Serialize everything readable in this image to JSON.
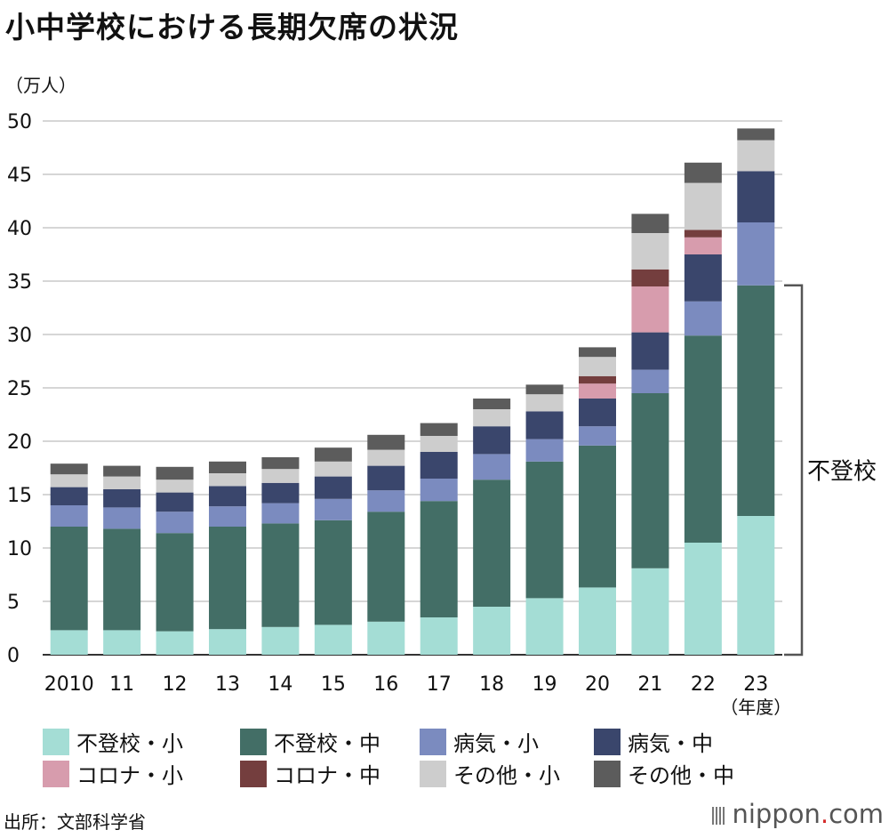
{
  "title": "小中学校における長期欠席の状況",
  "unit_label": "（万人）",
  "source": "出所：文部科学省",
  "logo": {
    "prefix": "nippon",
    "dot": ".",
    "suffix": "com"
  },
  "bracket_label": "不登校",
  "chart_data": {
    "type": "bar",
    "stacked": true,
    "categories": [
      "2010",
      "11",
      "12",
      "13",
      "14",
      "15",
      "16",
      "17",
      "18",
      "19",
      "20",
      "21",
      "22",
      "23"
    ],
    "x_suffix": "（年度）",
    "ylim": [
      0,
      50
    ],
    "yticks": [
      0,
      5,
      10,
      15,
      20,
      25,
      30,
      35,
      40,
      45,
      50
    ],
    "grid": true,
    "legend_position": "bottom",
    "series": [
      {
        "name": "不登校・小",
        "color": "#a4ddd5",
        "values": [
          2.3,
          2.3,
          2.2,
          2.4,
          2.6,
          2.8,
          3.1,
          3.5,
          4.5,
          5.3,
          6.3,
          8.1,
          10.5,
          13.0
        ]
      },
      {
        "name": "不登校・中",
        "color": "#436e66",
        "values": [
          9.7,
          9.5,
          9.2,
          9.6,
          9.7,
          9.8,
          10.3,
          10.9,
          11.9,
          12.8,
          13.3,
          16.4,
          19.4,
          21.6
        ]
      },
      {
        "name": "病気・小",
        "color": "#7b8bbf",
        "values": [
          2.0,
          2.0,
          2.0,
          1.9,
          1.9,
          2.0,
          2.0,
          2.1,
          2.4,
          2.1,
          1.8,
          2.2,
          3.2,
          5.9
        ]
      },
      {
        "name": "病気・中",
        "color": "#3a466c",
        "values": [
          1.7,
          1.7,
          1.8,
          1.9,
          1.9,
          2.1,
          2.3,
          2.5,
          2.6,
          2.6,
          2.6,
          3.5,
          4.4,
          4.8
        ]
      },
      {
        "name": "コロナ・小",
        "color": "#d79cad",
        "values": [
          0,
          0,
          0,
          0,
          0,
          0,
          0,
          0,
          0,
          0,
          1.4,
          4.3,
          1.6,
          0
        ]
      },
      {
        "name": "コロナ・中",
        "color": "#743e3e",
        "values": [
          0,
          0,
          0,
          0,
          0,
          0,
          0,
          0,
          0,
          0,
          0.7,
          1.6,
          0.7,
          0
        ]
      },
      {
        "name": "その他・小",
        "color": "#cdcdcd",
        "values": [
          1.2,
          1.2,
          1.2,
          1.2,
          1.3,
          1.4,
          1.5,
          1.5,
          1.6,
          1.6,
          1.8,
          3.4,
          4.4,
          2.9
        ]
      },
      {
        "name": "その他・中",
        "color": "#5c5c5c",
        "values": [
          1.0,
          1.0,
          1.2,
          1.1,
          1.1,
          1.3,
          1.4,
          1.2,
          1.0,
          0.9,
          0.9,
          1.8,
          1.9,
          1.1
        ]
      }
    ]
  }
}
